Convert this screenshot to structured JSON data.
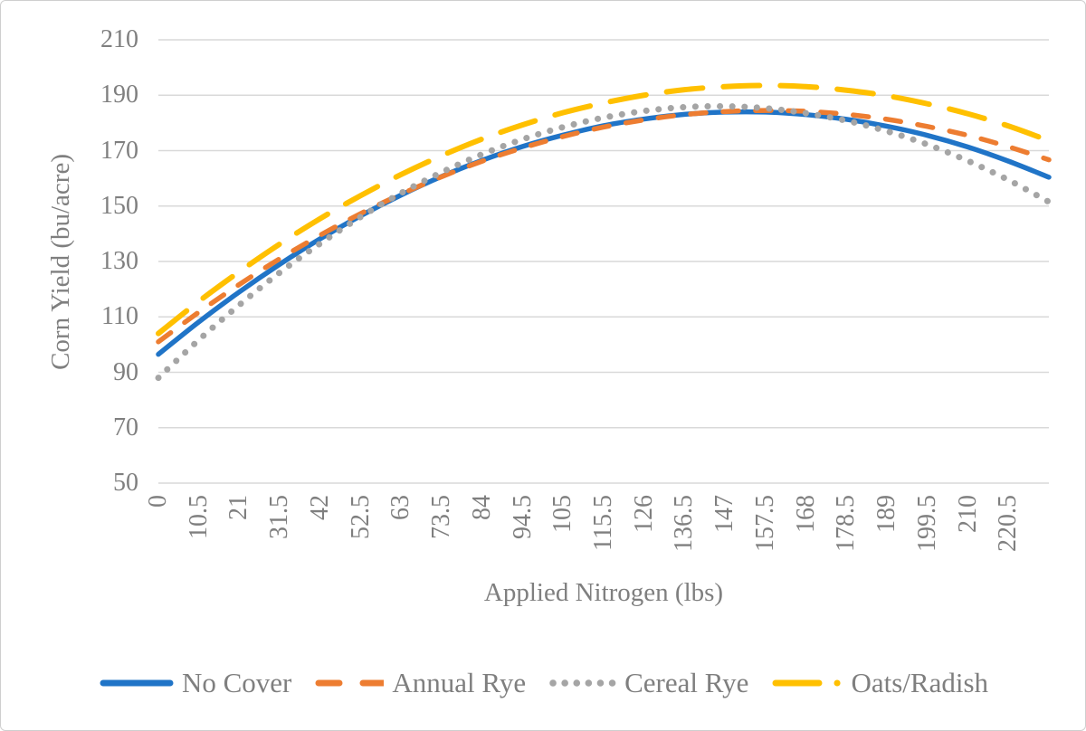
{
  "figure": {
    "background": "#ffffff",
    "border_color": "#cfcfcf",
    "gridline_color": "#d9d9d9",
    "text_color": "#7f7f7f"
  },
  "chart_data": {
    "type": "line",
    "title": "",
    "xlabel": "Applied Nitrogen (lbs)",
    "ylabel": "Corn Yield (bu/acre)",
    "xlim": [
      0,
      231
    ],
    "ylim": [
      50,
      210
    ],
    "grid": "horizontal",
    "legend_position": "bottom",
    "y_ticks": [
      50,
      70,
      90,
      110,
      130,
      150,
      170,
      190,
      210
    ],
    "y_tick_labels": [
      "50",
      "70",
      "90",
      "110",
      "130",
      "150",
      "170",
      "190",
      "210"
    ],
    "x_ticks": [
      0,
      10.5,
      21,
      31.5,
      42,
      52.5,
      63,
      73.5,
      84,
      94.5,
      105,
      115.5,
      126,
      136.5,
      147,
      157.5,
      168,
      178.5,
      189,
      199.5,
      210,
      220.5
    ],
    "x_tick_labels": [
      "0",
      "10.5",
      "21",
      "31.5",
      "42",
      "52.5",
      "63",
      "73.5",
      "84",
      "94.5",
      "105",
      "115.5",
      "126",
      "136.5",
      "147",
      "157.5",
      "168",
      "178.5",
      "189",
      "199.5",
      "210",
      "220.5"
    ],
    "x": [
      0,
      10.5,
      21,
      31.5,
      42,
      52.5,
      63,
      73.5,
      84,
      94.5,
      105,
      115.5,
      126,
      136.5,
      147,
      157.5,
      168,
      178.5,
      189,
      199.5,
      210,
      220.5,
      231
    ],
    "series": [
      {
        "name": "No Cover",
        "color": "#2074c7",
        "style": "solid",
        "values": [
          96.5,
          108.2,
          119.0,
          129.0,
          138.2,
          146.5,
          154.0,
          160.7,
          166.5,
          171.5,
          175.6,
          179.0,
          181.4,
          183.1,
          183.9,
          183.9,
          183.0,
          181.3,
          178.8,
          175.5,
          171.3,
          166.2,
          160.4
        ]
      },
      {
        "name": "Annual Rye",
        "color": "#ed7d31",
        "style": "dash",
        "values": [
          101.0,
          111.7,
          121.7,
          131.0,
          139.5,
          147.3,
          154.3,
          160.6,
          166.2,
          171.0,
          175.1,
          178.5,
          181.1,
          183.0,
          184.1,
          184.5,
          184.2,
          183.1,
          181.3,
          178.7,
          175.5,
          171.4,
          166.7
        ]
      },
      {
        "name": "Cereal Rye",
        "color": "#a5a5a5",
        "style": "dot",
        "values": [
          88.0,
          101.7,
          114.3,
          126.0,
          136.5,
          146.1,
          154.7,
          162.2,
          168.7,
          174.1,
          178.5,
          181.9,
          184.3,
          185.7,
          186.0,
          185.3,
          183.5,
          180.8,
          177.0,
          172.2,
          166.3,
          159.4,
          151.5
        ]
      },
      {
        "name": "Oats/Radish",
        "color": "#ffc000",
        "style": "long-dash",
        "values": [
          104.0,
          115.6,
          126.3,
          136.3,
          145.5,
          153.8,
          161.4,
          168.2,
          174.2,
          179.3,
          183.7,
          187.2,
          190.0,
          192.0,
          193.1,
          193.5,
          193.1,
          191.8,
          189.8,
          186.9,
          183.3,
          178.9,
          173.6
        ]
      }
    ]
  }
}
